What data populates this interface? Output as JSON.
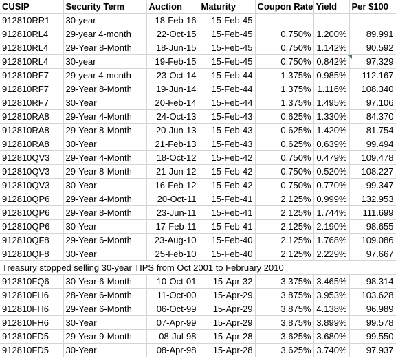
{
  "headers": {
    "cusip": "CUSIP",
    "term": "Security Term",
    "auction": "Auction",
    "maturity": "Maturity",
    "coupon": "Coupon Rate",
    "yield": "Yield",
    "price": "Per $100"
  },
  "rows": [
    {
      "cusip": "912810RR1",
      "term": "30-year",
      "auction": "18-Feb-16",
      "maturity": "15-Feb-45",
      "coupon": "",
      "yield": "",
      "price": ""
    },
    {
      "cusip": "912810RL4",
      "term": "29-year 4-month",
      "auction": "22-Oct-15",
      "maturity": "15-Feb-45",
      "coupon": "0.750%",
      "yield": "1.200%",
      "price": "89.991"
    },
    {
      "cusip": "912810RL4",
      "term": "29-Year 8-Month",
      "auction": "18-Jun-15",
      "maturity": "15-Feb-45",
      "coupon": "0.750%",
      "yield": "1.142%",
      "price": "90.592"
    },
    {
      "cusip": "912810RL4",
      "term": "30-year",
      "auction": "19-Feb-15",
      "maturity": "15-Feb-45",
      "coupon": "0.750%",
      "yield": "0.842%",
      "price": "97.329"
    },
    {
      "cusip": "912810RF7",
      "term": "29-year 4-month",
      "auction": "23-Oct-14",
      "maturity": "15-Feb-44",
      "coupon": "1.375%",
      "yield": "0.985%",
      "price": "112.167"
    },
    {
      "cusip": "912810RF7",
      "term": "29-Year 8-Month",
      "auction": "19-Jun-14",
      "maturity": "15-Feb-44",
      "coupon": "1.375%",
      "yield": "1.116%",
      "price": "108.340"
    },
    {
      "cusip": "912810RF7",
      "term": "30-Year",
      "auction": "20-Feb-14",
      "maturity": "15-Feb-44",
      "coupon": "1.375%",
      "yield": "1.495%",
      "price": "97.106"
    },
    {
      "cusip": "912810RA8",
      "term": "29-Year 4-Month",
      "auction": "24-Oct-13",
      "maturity": "15-Feb-43",
      "coupon": "0.625%",
      "yield": "1.330%",
      "price": "84.370"
    },
    {
      "cusip": "912810RA8",
      "term": "29-Year 8-Month",
      "auction": "20-Jun-13",
      "maturity": "15-Feb-43",
      "coupon": "0.625%",
      "yield": "1.420%",
      "price": "81.754"
    },
    {
      "cusip": "912810RA8",
      "term": "30-Year",
      "auction": "21-Feb-13",
      "maturity": "15-Feb-43",
      "coupon": "0.625%",
      "yield": "0.639%",
      "price": "99.494"
    },
    {
      "cusip": "912810QV3",
      "term": "29-Year 4-Month",
      "auction": "18-Oct-12",
      "maturity": "15-Feb-42",
      "coupon": "0.750%",
      "yield": "0.479%",
      "price": "109.478"
    },
    {
      "cusip": "912810QV3",
      "term": "29-Year 8-Month",
      "auction": "21-Jun-12",
      "maturity": "15-Feb-42",
      "coupon": "0.750%",
      "yield": "0.520%",
      "price": "108.227"
    },
    {
      "cusip": "912810QV3",
      "term": "30-Year",
      "auction": "16-Feb-12",
      "maturity": "15-Feb-42",
      "coupon": "0.750%",
      "yield": "0.770%",
      "price": "99.347"
    },
    {
      "cusip": "912810QP6",
      "term": "29-Year 4-Month",
      "auction": "20-Oct-11",
      "maturity": "15-Feb-41",
      "coupon": "2.125%",
      "yield": "0.999%",
      "price": "132.953"
    },
    {
      "cusip": "912810QP6",
      "term": "29-Year 8-Month",
      "auction": "23-Jun-11",
      "maturity": "15-Feb-41",
      "coupon": "2.125%",
      "yield": "1.744%",
      "price": "111.699"
    },
    {
      "cusip": "912810QP6",
      "term": "30-Year",
      "auction": "17-Feb-11",
      "maturity": "15-Feb-41",
      "coupon": "2.125%",
      "yield": "2.190%",
      "price": "98.655"
    },
    {
      "cusip": "912810QF8",
      "term": "29-Year 6-Month",
      "auction": "23-Aug-10",
      "maturity": "15-Feb-40",
      "coupon": "2.125%",
      "yield": "1.768%",
      "price": "109.086"
    },
    {
      "cusip": "912810QF8",
      "term": "30-Year",
      "auction": "25-Feb-10",
      "maturity": "15-Feb-40",
      "coupon": "2.125%",
      "yield": "2.229%",
      "price": "97.667"
    }
  ],
  "note": "Treasury stopped selling 30-year TIPS from Oct 2001 to February 2010",
  "rows_after": [
    {
      "cusip": "912810FQ6",
      "term": "30-Year 6-Month",
      "auction": "10-Oct-01",
      "maturity": "15-Apr-32",
      "coupon": "3.375%",
      "yield": "3.465%",
      "price": "98.314"
    },
    {
      "cusip": "912810FH6",
      "term": "28-Year 6-Month",
      "auction": "11-Oct-00",
      "maturity": "15-Apr-29",
      "coupon": "3.875%",
      "yield": "3.953%",
      "price": "103.628"
    },
    {
      "cusip": "912810FH6",
      "term": "29-Year 6-Month",
      "auction": "06-Oct-99",
      "maturity": "15-Apr-29",
      "coupon": "3.875%",
      "yield": "4.138%",
      "price": "96.989"
    },
    {
      "cusip": "912810FH6",
      "term": "30-Year",
      "auction": "07-Apr-99",
      "maturity": "15-Apr-29",
      "coupon": "3.875%",
      "yield": "3.899%",
      "price": "99.578"
    },
    {
      "cusip": "912810FD5",
      "term": "29-Year 9-Month",
      "auction": "08-Jul-98",
      "maturity": "15-Apr-28",
      "coupon": "3.625%",
      "yield": "3.680%",
      "price": "99.550"
    },
    {
      "cusip": "912810FD5",
      "term": "30-Year",
      "auction": "08-Apr-98",
      "maturity": "15-Apr-28",
      "coupon": "3.625%",
      "yield": "3.740%",
      "price": "97.937"
    }
  ],
  "colors": {
    "gridline": "#d4d4d4",
    "comment_flag": "#2e8b2e"
  }
}
